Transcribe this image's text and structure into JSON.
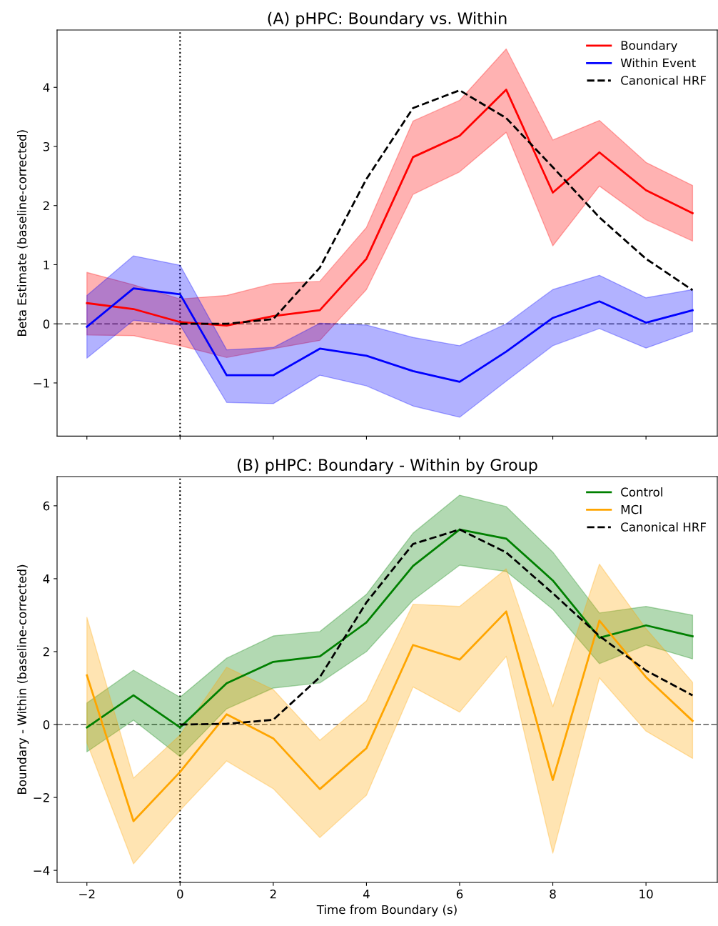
{
  "chart_data": [
    {
      "type": "line",
      "title": "(A) pHPC: Boundary vs. Within",
      "ylabel": "Beta Estimate (baseline-corrected)",
      "xlim": [
        -2.64,
        11.53
      ],
      "ylim": [
        -1.9,
        4.97
      ],
      "xticks": [
        -2,
        0,
        2,
        4,
        6,
        8,
        10
      ],
      "yticks": [
        {
          "value": -1,
          "label": "−1"
        },
        0,
        1,
        2,
        3,
        4
      ],
      "tick_labels": "y",
      "legend": "top right",
      "grid": false,
      "ref_lines": [
        {
          "axis": "x",
          "value": 0,
          "color": "#000000",
          "line_style": "dotted"
        },
        {
          "axis": "y",
          "value": 0,
          "color": "#808080",
          "line_style": "dashed"
        }
      ],
      "series": [
        {
          "name": "Boundary",
          "color": "#ff0000",
          "x": [
            -2,
            -1,
            0,
            1,
            2,
            3,
            4,
            5,
            6,
            7,
            8,
            9,
            10,
            11
          ],
          "values": [
            0.35,
            0.25,
            0.03,
            -0.03,
            0.13,
            0.23,
            1.1,
            2.82,
            3.18,
            3.96,
            2.22,
            2.9,
            2.26,
            1.87
          ],
          "lower": [
            -0.19,
            -0.2,
            -0.37,
            -0.57,
            -0.42,
            -0.28,
            0.58,
            2.19,
            2.57,
            3.24,
            1.32,
            2.33,
            1.76,
            1.4
          ],
          "upper": [
            0.87,
            0.66,
            0.42,
            0.48,
            0.68,
            0.72,
            1.63,
            3.43,
            3.78,
            4.65,
            3.11,
            3.44,
            2.73,
            2.34
          ]
        },
        {
          "name": "Within Event",
          "color": "#0000ff",
          "x": [
            -2,
            -1,
            0,
            1,
            2,
            3,
            4,
            5,
            6,
            7,
            8,
            9,
            10,
            11
          ],
          "values": [
            -0.05,
            0.6,
            0.5,
            -0.87,
            -0.87,
            -0.42,
            -0.54,
            -0.8,
            -0.98,
            -0.47,
            0.1,
            0.38,
            0.02,
            0.23
          ],
          "lower": [
            -0.58,
            0.06,
            -0.02,
            -1.33,
            -1.35,
            -0.87,
            -1.05,
            -1.39,
            -1.58,
            -0.97,
            -0.37,
            -0.08,
            -0.41,
            -0.13
          ],
          "upper": [
            0.48,
            1.15,
            0.99,
            -0.44,
            -0.4,
            0.01,
            -0.02,
            -0.23,
            -0.37,
            0.0,
            0.58,
            0.82,
            0.44,
            0.58
          ]
        },
        {
          "name": "Canonical HRF",
          "color": "#000000",
          "line_style": "dashed",
          "x": [
            0,
            1,
            2,
            3,
            4,
            5,
            6,
            7,
            8,
            9,
            10,
            11
          ],
          "values": [
            0,
            0,
            0.08,
            0.95,
            2.45,
            3.65,
            3.95,
            3.48,
            2.65,
            1.8,
            1.1,
            0.57
          ]
        }
      ]
    },
    {
      "type": "line",
      "title": "(B) pHPC: Boundary - Within by Group",
      "xlabel": "Time from Boundary (s)",
      "ylabel": "Boundary - Within (baseline-corrected)",
      "xlim": [
        -2.64,
        11.53
      ],
      "ylim": [
        -4.33,
        6.8
      ],
      "xticks": [
        {
          "value": -2,
          "label": "−2"
        },
        0,
        2,
        4,
        6,
        8,
        10
      ],
      "yticks": [
        {
          "value": -4,
          "label": "−4"
        },
        {
          "value": -2,
          "label": "−2"
        },
        0,
        2,
        4,
        6
      ],
      "legend": "top right",
      "grid": false,
      "ref_lines": [
        {
          "axis": "x",
          "value": 0,
          "color": "#000000",
          "line_style": "dotted"
        },
        {
          "axis": "y",
          "value": 0,
          "color": "#808080",
          "line_style": "dashed"
        }
      ],
      "series": [
        {
          "name": "Control",
          "color": "#008000",
          "x": [
            -2,
            -1,
            0,
            1,
            2,
            3,
            4,
            5,
            6,
            7,
            8,
            9,
            10,
            11
          ],
          "values": [
            -0.08,
            0.8,
            -0.08,
            1.13,
            1.72,
            1.87,
            2.8,
            4.35,
            5.35,
            5.1,
            3.95,
            2.38,
            2.72,
            2.42
          ],
          "lower": [
            -0.75,
            0.12,
            -0.88,
            0.43,
            1.0,
            1.14,
            2.0,
            3.41,
            4.37,
            4.2,
            3.16,
            1.67,
            2.18,
            1.8
          ],
          "upper": [
            0.59,
            1.49,
            0.75,
            1.82,
            2.43,
            2.55,
            3.57,
            5.25,
            6.29,
            5.98,
            4.73,
            3.06,
            3.24,
            3.0
          ]
        },
        {
          "name": "MCI",
          "color": "#ffa500",
          "x": [
            -2,
            -1,
            0,
            1,
            2,
            3,
            4,
            5,
            6,
            7,
            8,
            9,
            10,
            11
          ],
          "values": [
            1.35,
            -2.65,
            -1.3,
            0.28,
            -0.38,
            -1.77,
            -0.65,
            2.18,
            1.78,
            3.1,
            -1.52,
            2.85,
            1.3,
            0.1
          ],
          "lower": [
            -0.5,
            -3.82,
            -2.35,
            -1.0,
            -1.76,
            -3.1,
            -1.94,
            1.03,
            0.34,
            1.87,
            -3.53,
            1.28,
            -0.18,
            -0.93
          ],
          "upper": [
            2.94,
            -1.47,
            -0.29,
            1.57,
            0.96,
            -0.43,
            0.65,
            3.3,
            3.24,
            4.27,
            0.49,
            4.4,
            2.63,
            1.16
          ]
        },
        {
          "name": "Canonical HRF",
          "color": "#000000",
          "line_style": "dashed",
          "x": [
            0,
            1,
            2,
            3,
            4,
            5,
            6,
            7,
            8,
            9,
            10,
            11
          ],
          "values": [
            0,
            0.02,
            0.13,
            1.3,
            3.35,
            4.95,
            5.35,
            4.72,
            3.6,
            2.43,
            1.48,
            0.8
          ]
        }
      ]
    }
  ]
}
